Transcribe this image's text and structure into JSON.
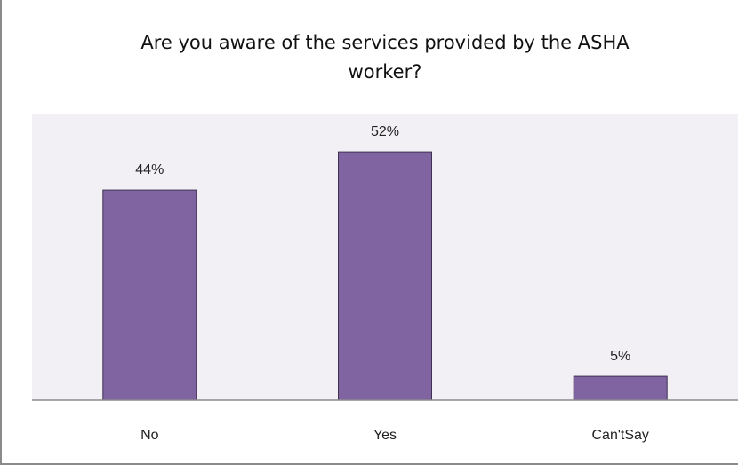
{
  "chart_data": {
    "type": "bar",
    "title_lines": [
      "Are you aware of the services provided by the ASHA",
      "worker?"
    ],
    "categories": [
      "No",
      "Yes",
      "Can'tSay"
    ],
    "values": [
      44,
      52,
      5
    ],
    "data_labels": [
      "44%",
      "52%",
      "5%"
    ],
    "xlabel": "",
    "ylabel": "",
    "ylim": [
      0,
      60
    ],
    "grid": false,
    "legend": "none",
    "colors": {
      "bar_fill": "#8064a2",
      "bar_stroke": "#3f3151",
      "plot_background": "#f2f0f4",
      "axis_line": "#8a8a8a"
    }
  }
}
